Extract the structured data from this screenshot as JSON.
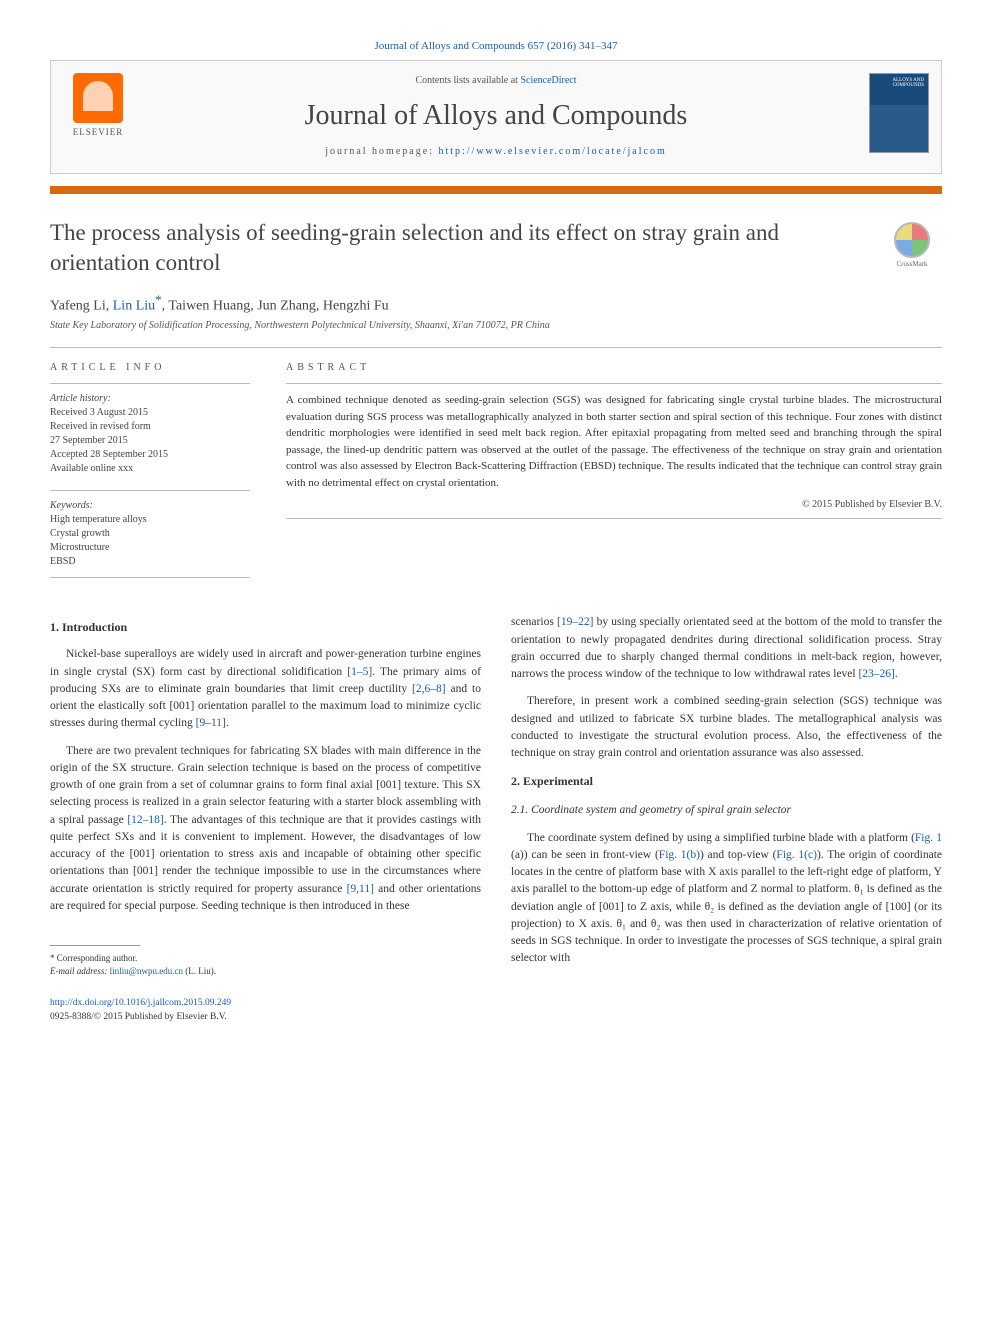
{
  "top_citation": {
    "text": "Journal of Alloys and Compounds 657 (2016) 341–347",
    "color": "#1a5ba8"
  },
  "header": {
    "contents_prefix": "Contents lists available at ",
    "contents_link": "ScienceDirect",
    "journal_title": "Journal of Alloys and Compounds",
    "homepage_prefix": "journal homepage: ",
    "homepage_url": "http://www.elsevier.com/locate/jalcom",
    "elsevier_label": "ELSEVIER",
    "cover_text": "ALLOYS AND COMPOUNDS"
  },
  "article": {
    "title": "The process analysis of seeding-grain selection and its effect on stray grain and orientation control",
    "crossmark_label": "CrossMark",
    "authors_html": "Yafeng Li, Lin Liu",
    "author1": "Yafeng Li",
    "author2": "Lin Liu",
    "author_rest": ", Taiwen Huang, Jun Zhang, Hengzhi Fu",
    "affiliation": "State Key Laboratory of Solidification Processing, Northwestern Polytechnical University, Shaanxi, Xi'an 710072, PR China"
  },
  "info": {
    "heading": "ARTICLE INFO",
    "history_label": "Article history:",
    "history": [
      "Received 3 August 2015",
      "Received in revised form",
      "27 September 2015",
      "Accepted 28 September 2015",
      "Available online xxx"
    ],
    "keywords_label": "Keywords:",
    "keywords": [
      "High temperature alloys",
      "Crystal growth",
      "Microstructure",
      "EBSD"
    ]
  },
  "abstract": {
    "heading": "ABSTRACT",
    "text": "A combined technique denoted as seeding-grain selection (SGS) was designed for fabricating single crystal turbine blades. The microstructural evaluation during SGS process was metallographically analyzed in both starter section and spiral section of this technique. Four zones with distinct dendritic morphologies were identified in seed melt back region. After epitaxial propagating from melted seed and branching through the spiral passage, the lined-up dendritic pattern was observed at the outlet of the passage. The effectiveness of the technique on stray grain and orientation control was also assessed by Electron Back-Scattering Diffraction (EBSD) technique. The results indicated that the technique can control stray grain with no detrimental effect on crystal orientation.",
    "copyright": "© 2015 Published by Elsevier B.V."
  },
  "sections": {
    "intro_heading": "1. Introduction",
    "intro_p1_a": "Nickel-base superalloys are widely used in aircraft and power-generation turbine engines in single crystal (SX) form cast by directional solidification ",
    "intro_p1_ref1": "[1–5]",
    "intro_p1_b": ". The primary aims of producing SXs are to eliminate grain boundaries that limit creep ductility ",
    "intro_p1_ref2": "[2,6–8]",
    "intro_p1_c": " and to orient the elastically soft [001] orientation parallel to the maximum load to minimize cyclic stresses during thermal cycling ",
    "intro_p1_ref3": "[9–11]",
    "intro_p1_d": ".",
    "intro_p2_a": "There are two prevalent techniques for fabricating SX blades with main difference in the origin of the SX structure. Grain selection technique is based on the process of competitive growth of one grain from a set of columnar grains to form final axial [001] texture. This SX selecting process is realized in a grain selector featuring with a starter block assembling with a spiral passage ",
    "intro_p2_ref1": "[12–18]",
    "intro_p2_b": ". The advantages of this technique are that it provides castings with quite perfect SXs and it is convenient to implement. However, the disadvantages of low accuracy of the [001] orientation to stress axis and incapable of obtaining other specific orientations than [001] render the technique impossible to use in the circumstances where accurate orientation is strictly required for property assurance ",
    "intro_p2_ref2": "[9,11]",
    "intro_p2_c": " and other orientations are required for special purpose. Seeding technique is then introduced in these",
    "col2_p1_a": "scenarios ",
    "col2_p1_ref1": "[19–22]",
    "col2_p1_b": " by using specially orientated seed at the bottom of the mold to transfer the orientation to newly propagated dendrites during directional solidification process. Stray grain occurred due to sharply changed thermal conditions in melt-back region, however, narrows the process window of the technique to low withdrawal rates level ",
    "col2_p1_ref2": "[23–26]",
    "col2_p1_c": ".",
    "col2_p2": "Therefore, in present work a combined seeding-grain selection (SGS) technique was designed and utilized to fabricate SX turbine blades. The metallographical analysis was conducted to investigate the structural evolution process. Also, the effectiveness of the technique on stray grain control and orientation assurance was also assessed.",
    "exp_heading": "2. Experimental",
    "exp_sub_heading": "2.1. Coordinate system and geometry of spiral grain selector",
    "exp_p1_a": "The coordinate system defined by using a simplified turbine blade with a platform (",
    "exp_p1_ref1": "Fig. 1",
    "exp_p1_b": " (a)) can be seen in front-view (",
    "exp_p1_ref2": "Fig. 1(b)",
    "exp_p1_c": ") and top-view (",
    "exp_p1_ref3": "Fig. 1(c)",
    "exp_p1_d": "). The origin of coordinate locates in the centre of platform base with X axis parallel to the left-right edge of platform, Y axis parallel to the bottom-up edge of platform and Z normal to platform. θ₁ is defined as the deviation angle of [001] to Z axis, while θ₂ is defined as the deviation angle of [100] (or its projection) to X axis. θ₁ and θ₂ was then used in characterization of relative orientation of seeds in SGS technique. In order to investigate the processes of SGS technique, a spiral grain selector with"
  },
  "footnote": {
    "corresp": "* Corresponding author.",
    "email_label": "E-mail address: ",
    "email": "linliu@nwpu.edu.cn",
    "email_who": " (L. Liu)."
  },
  "footer": {
    "doi": "http://dx.doi.org/10.1016/j.jallcom.2015.09.249",
    "line2": "0925-8388/© 2015 Published by Elsevier B.V."
  },
  "colors": {
    "link": "#1a5ba8",
    "orange_bar": "#d8690f",
    "text": "#333333"
  }
}
